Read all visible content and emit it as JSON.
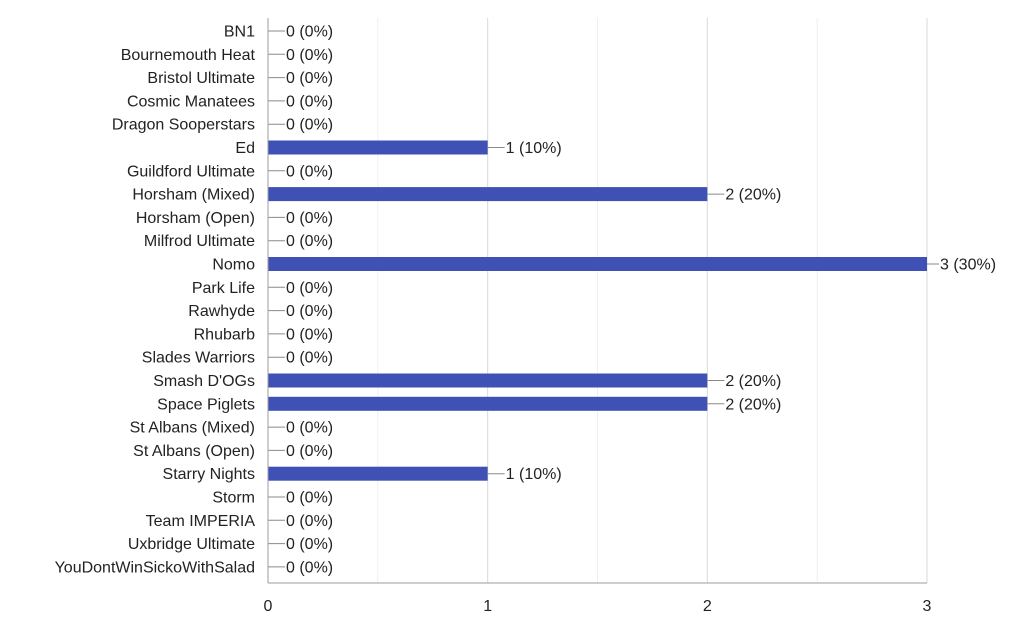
{
  "chart_data": {
    "type": "bar",
    "orientation": "horizontal",
    "categories": [
      "BN1",
      "Bournemouth Heat",
      "Bristol Ultimate",
      "Cosmic Manatees",
      "Dragon Sooperstars",
      "Ed",
      "Guildford Ultimate",
      "Horsham (Mixed)",
      "Horsham (Open)",
      "Milfrod Ultimate",
      "Nomo",
      "Park Life",
      "Rawhyde",
      "Rhubarb",
      "Slades Warriors",
      "Smash D'OGs",
      "Space Piglets",
      "St Albans (Mixed)",
      "St Albans (Open)",
      "Starry Nights",
      "Storm",
      "Team IMPERIA",
      "Uxbridge Ultimate",
      "YouDontWinSickoWithSalad"
    ],
    "values": [
      0,
      0,
      0,
      0,
      0,
      1,
      0,
      2,
      0,
      0,
      3,
      0,
      0,
      0,
      0,
      2,
      2,
      0,
      0,
      1,
      0,
      0,
      0,
      0
    ],
    "value_labels": [
      "0 (0%)",
      "0 (0%)",
      "0 (0%)",
      "0 (0%)",
      "0 (0%)",
      "1 (10%)",
      "0 (0%)",
      "2 (20%)",
      "0 (0%)",
      "0 (0%)",
      "3 (30%)",
      "0 (0%)",
      "0 (0%)",
      "0 (0%)",
      "0 (0%)",
      "2 (20%)",
      "2 (20%)",
      "0 (0%)",
      "0 (0%)",
      "1 (10%)",
      "0 (0%)",
      "0 (0%)",
      "0 (0%)",
      "0 (0%)"
    ],
    "x_ticks": [
      "0",
      "1",
      "2",
      "3"
    ],
    "xlim": [
      0,
      3
    ],
    "grid": true,
    "bar_color": "#3f51b5"
  }
}
